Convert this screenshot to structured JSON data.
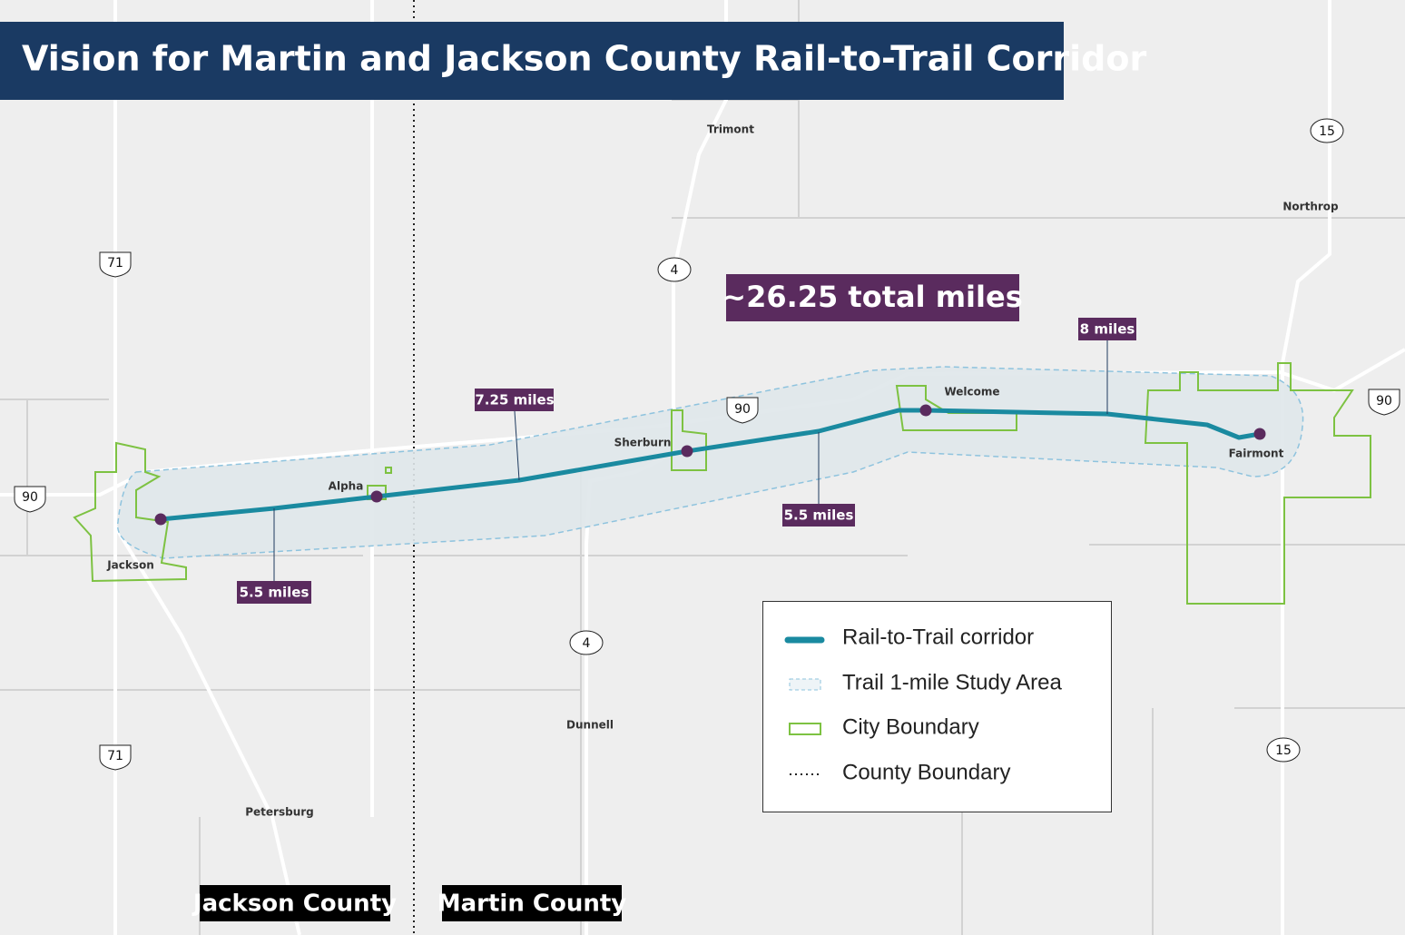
{
  "header": {
    "title": "Vision for Martin and Jackson County Rail-to-Trail Corridor"
  },
  "callout": {
    "total": "~26.25 total miles"
  },
  "segments": [
    {
      "label": "5.5 miles"
    },
    {
      "label": "7.25 miles"
    },
    {
      "label": "5.5 miles"
    },
    {
      "label": "8 miles"
    }
  ],
  "places": [
    "Trimont",
    "Northrop",
    "Sherburn",
    "Alpha",
    "Jackson",
    "Welcome",
    "Fairmont",
    "Dunnell",
    "Petersburg"
  ],
  "road_shields": [
    "15",
    "4",
    "71",
    "90",
    "90",
    "90",
    "4",
    "71",
    "15"
  ],
  "legend": {
    "items": [
      "Rail-to-Trail corridor",
      "Trail 1-mile Study Area",
      "City Boundary",
      "County Boundary"
    ]
  },
  "counties": [
    "Jackson County",
    "Martin County"
  ]
}
